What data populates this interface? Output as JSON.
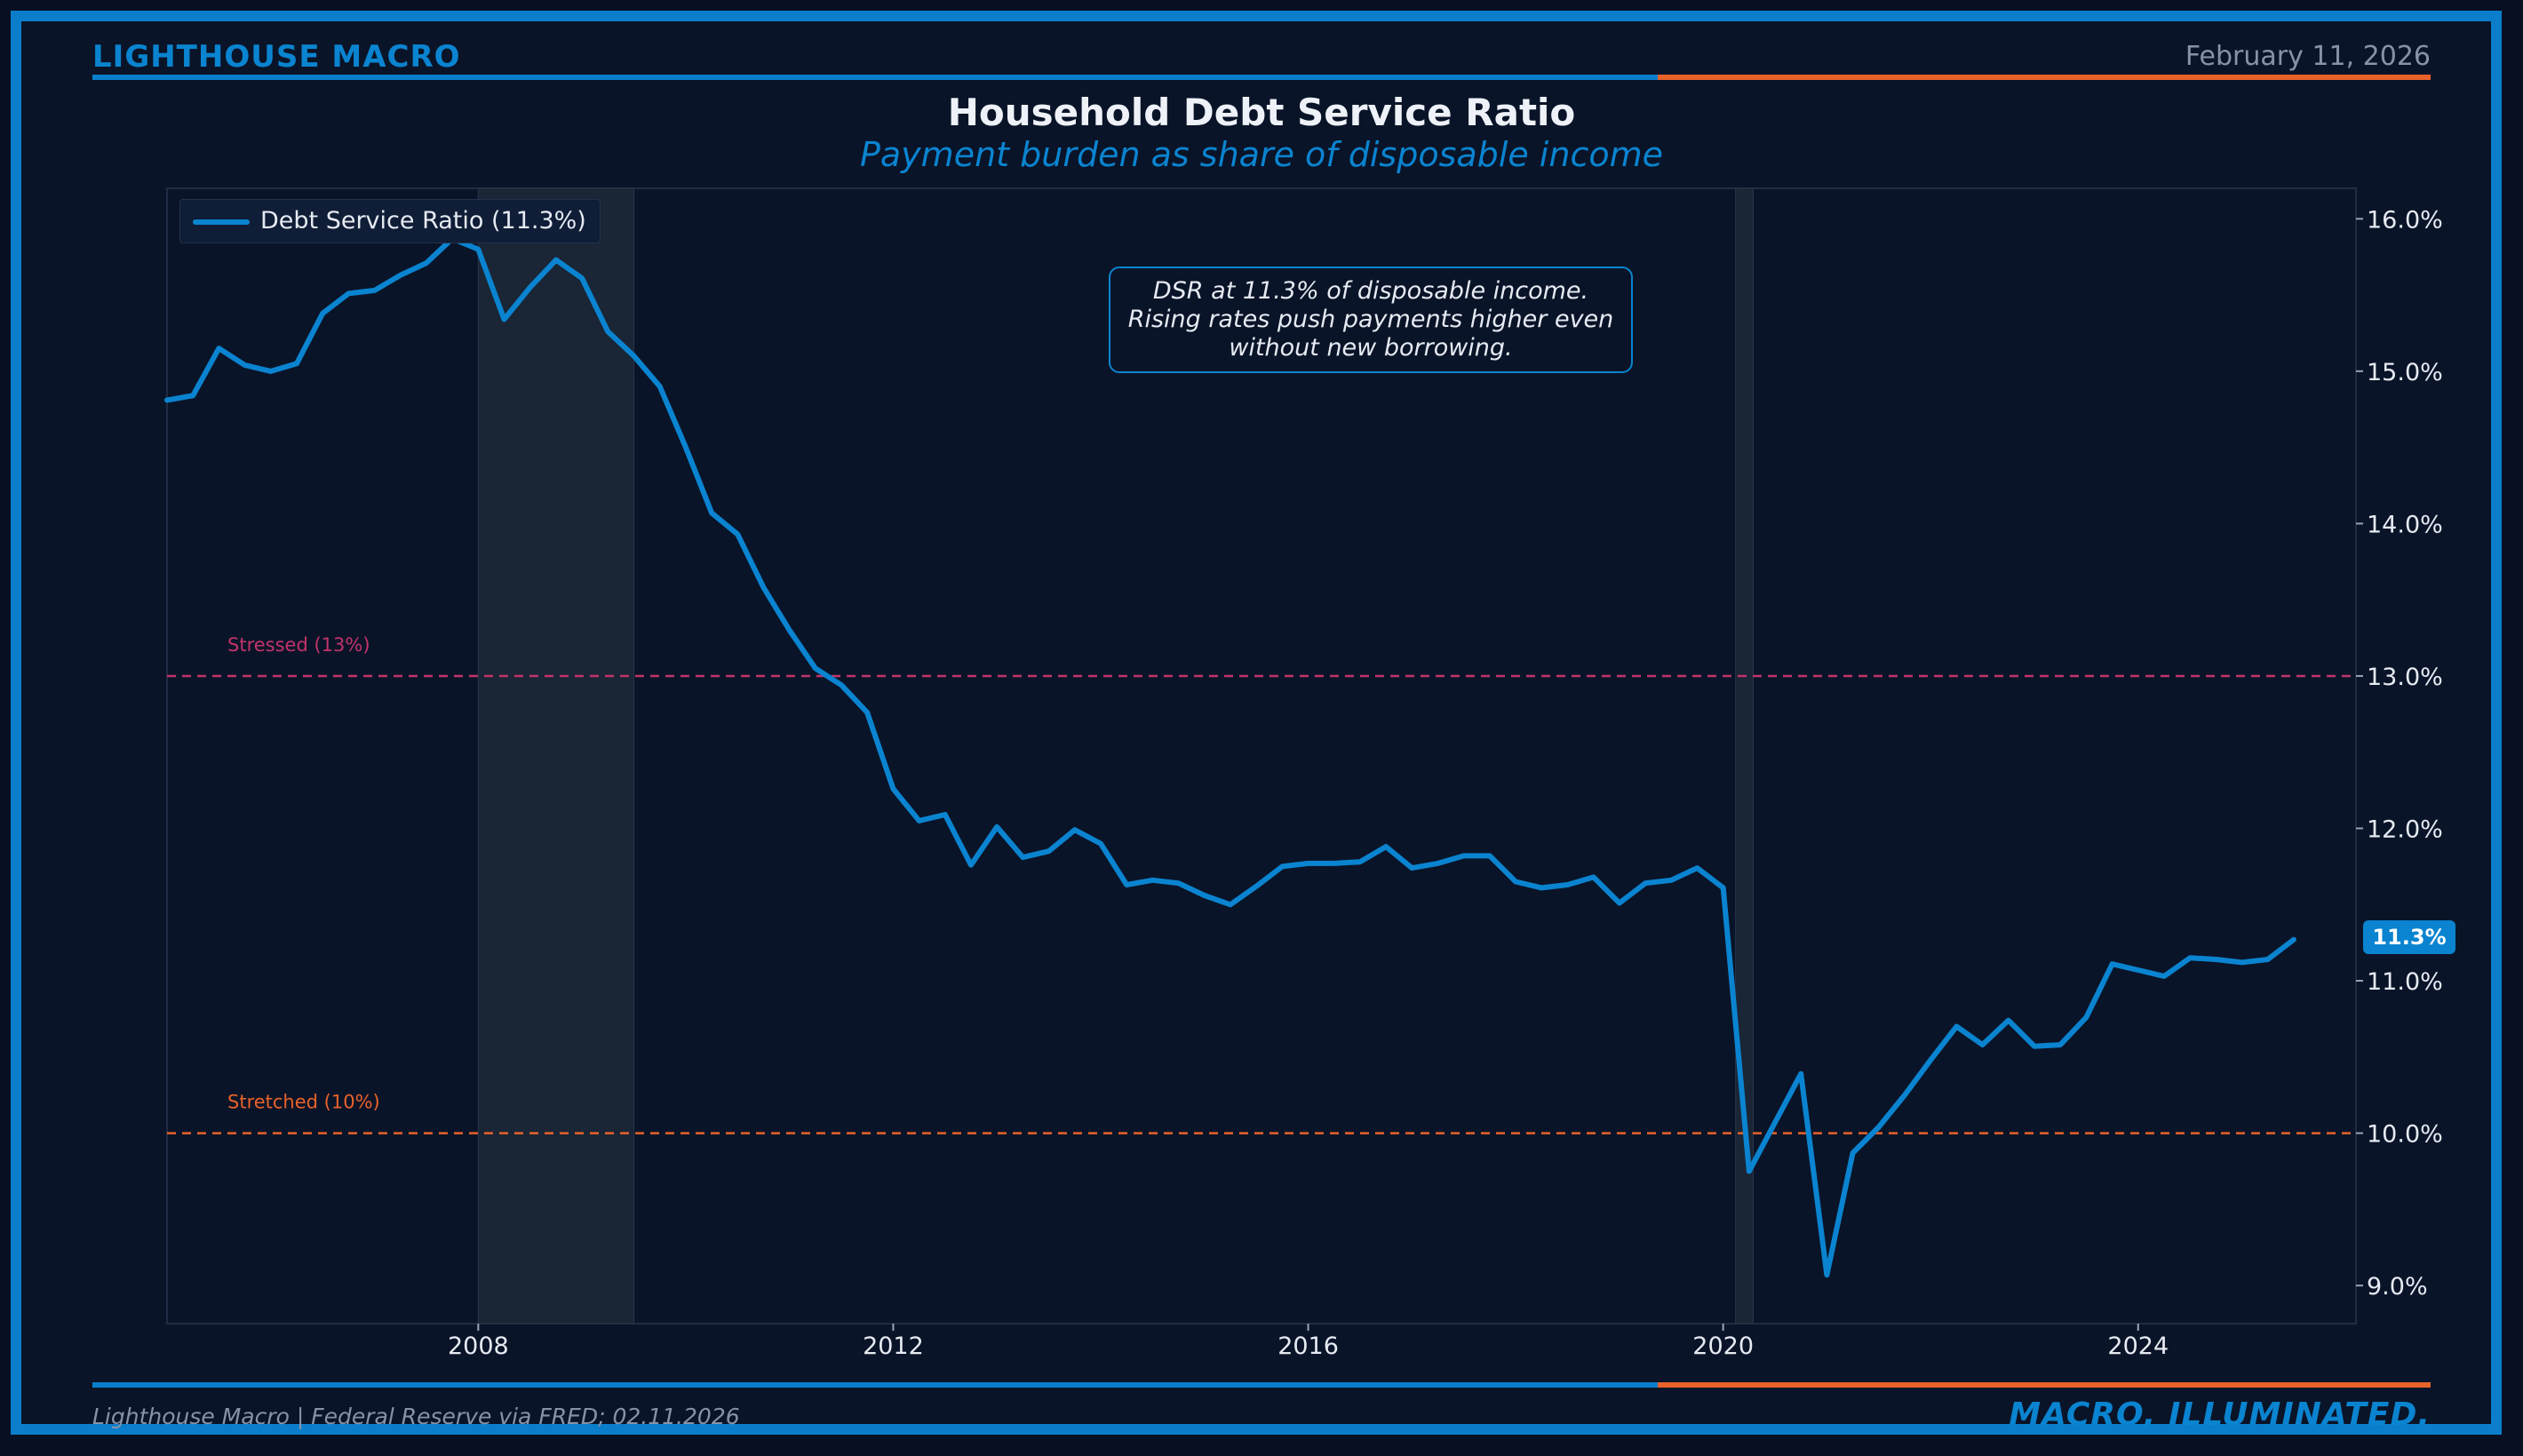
{
  "header": {
    "brand": "LIGHTHOUSE MACRO",
    "date": "February 11, 2026",
    "title": "Household Debt Service Ratio",
    "subtitle": "Payment burden as share of disposable income"
  },
  "footer": {
    "source": "Lighthouse Macro | Federal Reserve via FRED; 02.11.2026",
    "tagline": "MACRO, ILLUMINATED."
  },
  "colors": {
    "accent": "#0a84d0",
    "orange": "#e8622a",
    "pink": "#c2336b",
    "background": "#0a1428"
  },
  "legend": {
    "label": "Debt Service Ratio (11.3%)"
  },
  "annotation": {
    "lines": [
      "DSR at 11.3% of disposable income.",
      "Rising rates push payments higher even",
      "without new borrowing."
    ]
  },
  "badge": {
    "label": "11.3%"
  },
  "chart_data": {
    "type": "line",
    "title": "Household Debt Service Ratio",
    "subtitle": "Payment burden as share of disposable income",
    "xlabel": "",
    "ylabel": "",
    "xlim": [
      2005.0,
      2026.1
    ],
    "ylim": [
      8.75,
      16.2
    ],
    "x_ticks": [
      2008,
      2012,
      2016,
      2020,
      2024
    ],
    "y_ticks": [
      9,
      10,
      11,
      12,
      13,
      14,
      15,
      16
    ],
    "y_tick_labels": [
      "9.0%",
      "10.0%",
      "11.0%",
      "12.0%",
      "13.0%",
      "14.0%",
      "15.0%",
      "16.0%"
    ],
    "y_axis_side": "right",
    "legend_position": "top-left",
    "recessions": [
      {
        "start": 2008.0,
        "end": 2009.5
      },
      {
        "start": 2020.12,
        "end": 2020.29
      }
    ],
    "reference_lines": [
      {
        "label": "Stressed (13%)",
        "value": 13.0,
        "color": "#c2336b"
      },
      {
        "label": "Stretched (10%)",
        "value": 10.0,
        "color": "#e8622a"
      }
    ],
    "series": [
      {
        "name": "Debt Service Ratio (11.3%)",
        "color": "#0a84d0",
        "x": [
          2005.0,
          2005.25,
          2005.5,
          2005.75,
          2006.0,
          2006.25,
          2006.5,
          2006.75,
          2007.0,
          2007.25,
          2007.5,
          2007.75,
          2008.0,
          2008.25,
          2008.5,
          2008.75,
          2009.0,
          2009.25,
          2009.5,
          2009.75,
          2010.0,
          2010.25,
          2010.5,
          2010.75,
          2011.0,
          2011.25,
          2011.5,
          2011.75,
          2012.0,
          2012.25,
          2012.5,
          2012.75,
          2013.0,
          2013.25,
          2013.5,
          2013.75,
          2014.0,
          2014.25,
          2014.5,
          2014.75,
          2015.0,
          2015.25,
          2015.5,
          2015.75,
          2016.0,
          2016.25,
          2016.5,
          2016.75,
          2017.0,
          2017.25,
          2017.5,
          2017.75,
          2018.0,
          2018.25,
          2018.5,
          2018.75,
          2019.0,
          2019.25,
          2019.5,
          2019.75,
          2020.0,
          2020.25,
          2020.5,
          2020.75,
          2021.0,
          2021.25,
          2021.5,
          2021.75,
          2022.0,
          2022.25,
          2022.5,
          2022.75,
          2023.0,
          2023.25,
          2023.5,
          2023.75,
          2024.0,
          2024.25,
          2024.5,
          2024.75,
          2025.0,
          2025.25,
          2025.5
        ],
        "values": [
          14.81,
          14.84,
          15.15,
          15.04,
          15.0,
          15.05,
          15.38,
          15.51,
          15.53,
          15.63,
          15.71,
          15.87,
          15.8,
          15.34,
          15.55,
          15.73,
          15.61,
          15.26,
          15.1,
          14.9,
          14.5,
          14.07,
          13.93,
          13.58,
          13.3,
          13.05,
          12.94,
          12.76,
          12.26,
          12.05,
          12.09,
          11.76,
          12.01,
          11.81,
          11.85,
          11.99,
          11.9,
          11.63,
          11.66,
          11.64,
          11.56,
          11.5,
          11.62,
          11.75,
          11.77,
          11.77,
          11.78,
          11.88,
          11.74,
          11.77,
          11.82,
          11.82,
          11.65,
          11.61,
          11.63,
          11.68,
          11.51,
          11.64,
          11.66,
          11.74,
          11.61,
          9.75,
          10.07,
          10.39,
          9.07,
          9.87,
          10.04,
          10.25,
          10.48,
          10.7,
          10.58,
          10.74,
          10.57,
          10.58,
          10.76,
          11.11,
          11.07,
          11.03,
          11.15,
          11.14,
          11.12,
          11.14,
          11.27
        ]
      }
    ],
    "annotation": "DSR at 11.3% of disposable income. Rising rates push payments higher even without new borrowing.",
    "last_value_label": "11.3%"
  }
}
